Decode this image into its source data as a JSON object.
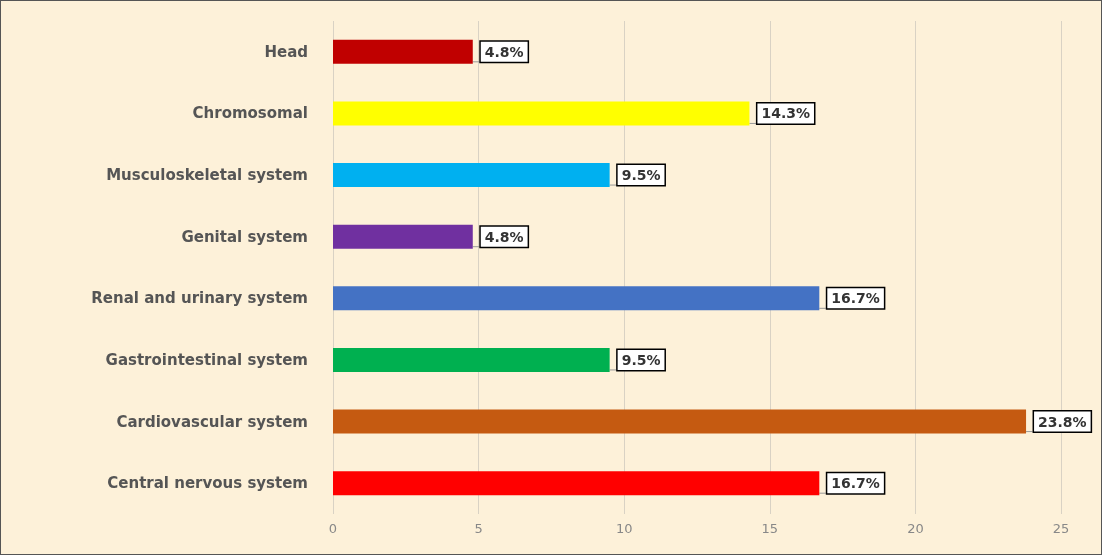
{
  "chart_data": {
    "type": "bar",
    "orientation": "horizontal",
    "categories": [
      "Head",
      "Chromosomal",
      "Musculoskeletal system",
      "Genital system",
      "Renal and urinary system",
      "Gastrointestinal system",
      "Cardiovascular system",
      "Central nervous system"
    ],
    "values": [
      4.8,
      14.3,
      9.5,
      4.8,
      16.7,
      9.5,
      23.8,
      16.7
    ],
    "colors": [
      "#c00000",
      "#ffff00",
      "#00b0f0",
      "#7030a0",
      "#4472c4",
      "#00b050",
      "#c55a11",
      "#ff0000"
    ],
    "value_labels": [
      "4.8%",
      "14.3%",
      "9.5%",
      "4.8%",
      "16.7%",
      "9.5%",
      "23.8%",
      "16.7%"
    ],
    "xlim": [
      0,
      25
    ],
    "xticks": [
      0,
      5,
      10,
      15,
      20,
      25
    ],
    "grid": "x"
  }
}
